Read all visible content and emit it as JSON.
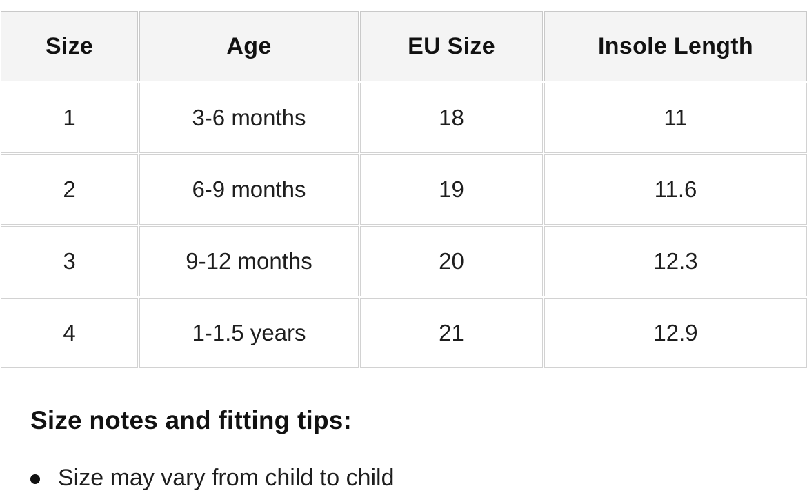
{
  "table": {
    "columns": [
      "Size",
      "Age",
      "EU Size",
      "Insole Length"
    ],
    "rows": [
      [
        "1",
        "3-6 months",
        "18",
        "11"
      ],
      [
        "2",
        "6-9 months",
        "19",
        "11.6"
      ],
      [
        "3",
        "9-12 months",
        "20",
        "12.3"
      ],
      [
        "4",
        "1-1.5 years",
        "21",
        "12.9"
      ]
    ]
  },
  "notes": {
    "heading": "Size notes and fitting tips:",
    "items": [
      "Size may vary from child to child"
    ]
  },
  "colors": {
    "header_bg": "#f4f4f4",
    "border": "#d2d2d2",
    "text": "#1b1b1b"
  }
}
